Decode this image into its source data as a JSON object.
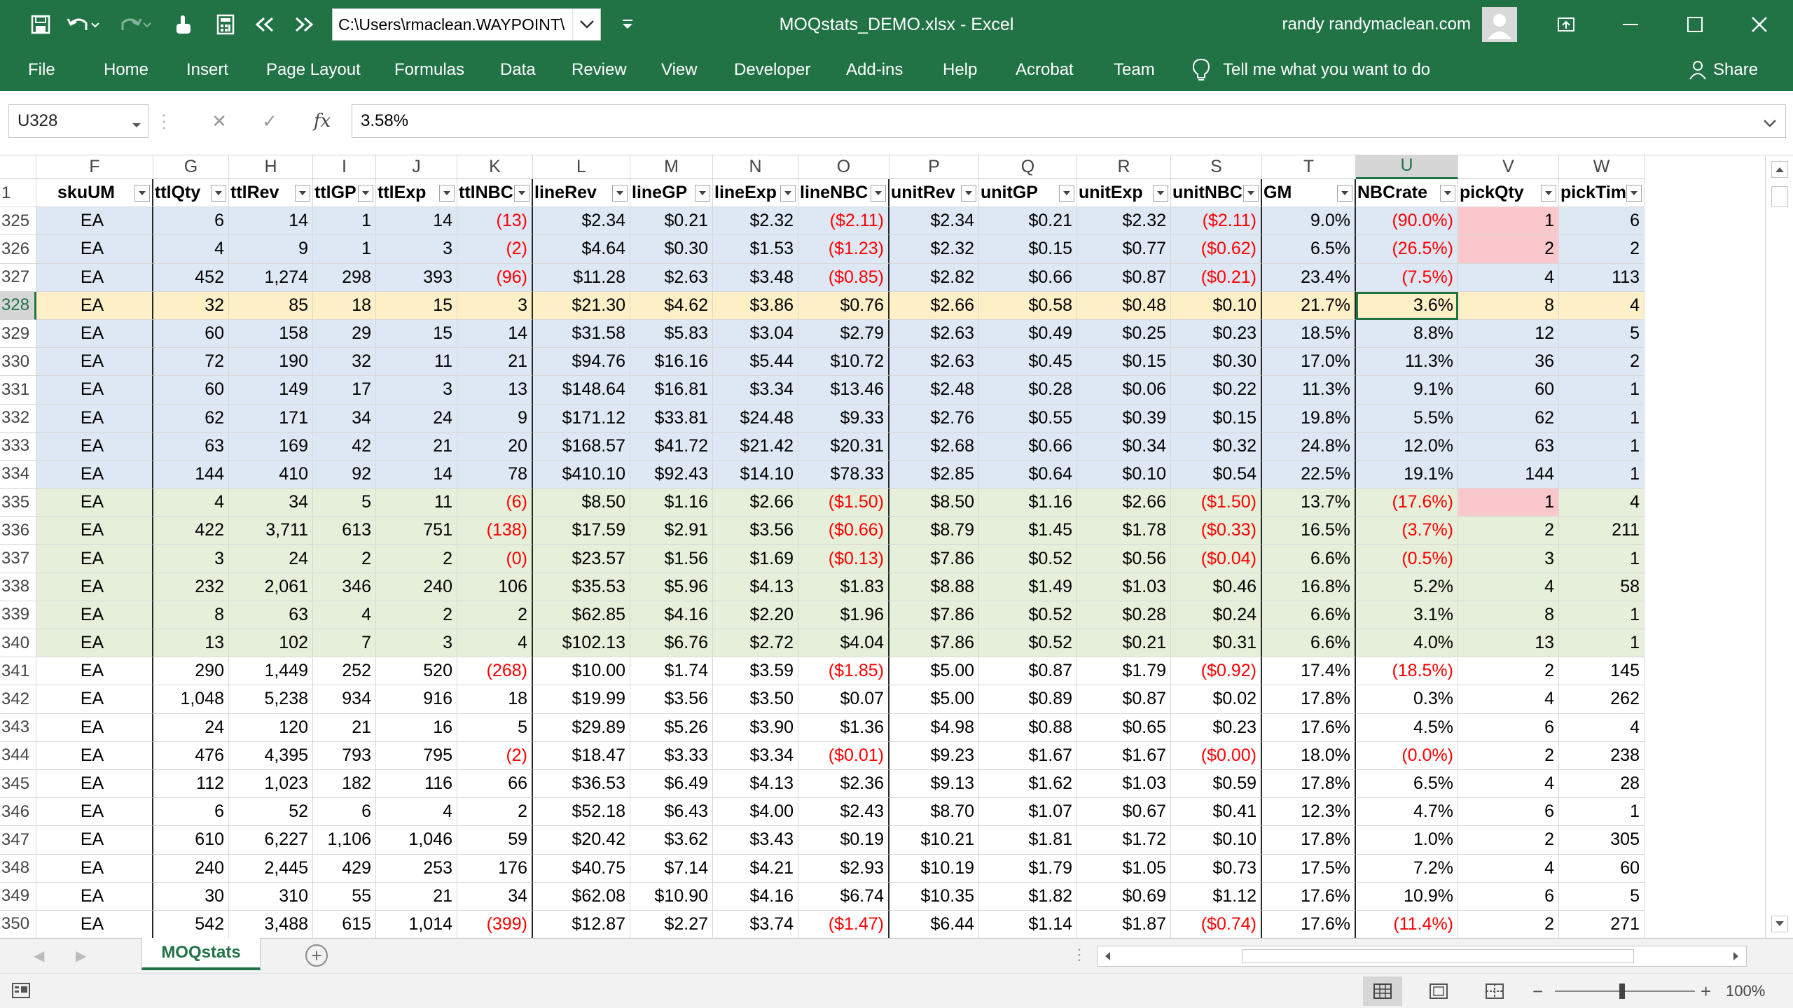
{
  "window": {
    "path": "C:\\Users\\rmaclean.WAYPOINT\\",
    "doc_title": "MOQstats_DEMO.xlsx  -  Excel",
    "user": "randy randymaclean.com"
  },
  "ribbon": {
    "tabs": [
      "File",
      "Home",
      "Insert",
      "Page Layout",
      "Formulas",
      "Data",
      "Review",
      "View",
      "Developer",
      "Add-ins",
      "Help",
      "Acrobat",
      "Team"
    ],
    "tell_me": "Tell me what you want to do",
    "share": "Share"
  },
  "formula_bar": {
    "name_box": "U328",
    "value": "3.58%"
  },
  "columns": [
    "F",
    "G",
    "H",
    "I",
    "J",
    "K",
    "L",
    "M",
    "N",
    "O",
    "P",
    "Q",
    "R",
    "S",
    "T",
    "U",
    "V",
    "W"
  ],
  "headers": [
    "skuUM",
    "ttlQty",
    "ttlRev",
    "ttlGP",
    "ttlExp",
    "ttlNBC",
    "lineRev",
    "lineGP",
    "lineExp",
    "lineNBC",
    "unitRev",
    "unitGP",
    "unitExp",
    "unitNBC",
    "GM",
    "NBCrate",
    "pickQty",
    "pickTimes"
  ],
  "rows": [
    {
      "n": "325",
      "c": [
        "EA",
        "6",
        "14",
        "1",
        "14",
        "(13)",
        "$2.34",
        "$0.21",
        "$2.32",
        "($2.11)",
        "$2.34",
        "$0.21",
        "$2.32",
        "($2.11)",
        "9.0%",
        "(90.0%)",
        "1",
        "6"
      ]
    },
    {
      "n": "326",
      "c": [
        "EA",
        "4",
        "9",
        "1",
        "3",
        "(2)",
        "$4.64",
        "$0.30",
        "$1.53",
        "($1.23)",
        "$2.32",
        "$0.15",
        "$0.77",
        "($0.62)",
        "6.5%",
        "(26.5%)",
        "2",
        "2"
      ]
    },
    {
      "n": "327",
      "c": [
        "EA",
        "452",
        "1,274",
        "298",
        "393",
        "(96)",
        "$11.28",
        "$2.63",
        "$3.48",
        "($0.85)",
        "$2.82",
        "$0.66",
        "$0.87",
        "($0.21)",
        "23.4%",
        "(7.5%)",
        "4",
        "113"
      ]
    },
    {
      "n": "328",
      "c": [
        "EA",
        "32",
        "85",
        "18",
        "15",
        "3",
        "$21.30",
        "$4.62",
        "$3.86",
        "$0.76",
        "$2.66",
        "$0.58",
        "$0.48",
        "$0.10",
        "21.7%",
        "3.6%",
        "8",
        "4"
      ]
    },
    {
      "n": "329",
      "c": [
        "EA",
        "60",
        "158",
        "29",
        "15",
        "14",
        "$31.58",
        "$5.83",
        "$3.04",
        "$2.79",
        "$2.63",
        "$0.49",
        "$0.25",
        "$0.23",
        "18.5%",
        "8.8%",
        "12",
        "5"
      ]
    },
    {
      "n": "330",
      "c": [
        "EA",
        "72",
        "190",
        "32",
        "11",
        "21",
        "$94.76",
        "$16.16",
        "$5.44",
        "$10.72",
        "$2.63",
        "$0.45",
        "$0.15",
        "$0.30",
        "17.0%",
        "11.3%",
        "36",
        "2"
      ]
    },
    {
      "n": "331",
      "c": [
        "EA",
        "60",
        "149",
        "17",
        "3",
        "13",
        "$148.64",
        "$16.81",
        "$3.34",
        "$13.46",
        "$2.48",
        "$0.28",
        "$0.06",
        "$0.22",
        "11.3%",
        "9.1%",
        "60",
        "1"
      ]
    },
    {
      "n": "332",
      "c": [
        "EA",
        "62",
        "171",
        "34",
        "24",
        "9",
        "$171.12",
        "$33.81",
        "$24.48",
        "$9.33",
        "$2.76",
        "$0.55",
        "$0.39",
        "$0.15",
        "19.8%",
        "5.5%",
        "62",
        "1"
      ]
    },
    {
      "n": "333",
      "c": [
        "EA",
        "63",
        "169",
        "42",
        "21",
        "20",
        "$168.57",
        "$41.72",
        "$21.42",
        "$20.31",
        "$2.68",
        "$0.66",
        "$0.34",
        "$0.32",
        "24.8%",
        "12.0%",
        "63",
        "1"
      ]
    },
    {
      "n": "334",
      "c": [
        "EA",
        "144",
        "410",
        "92",
        "14",
        "78",
        "$410.10",
        "$92.43",
        "$14.10",
        "$78.33",
        "$2.85",
        "$0.64",
        "$0.10",
        "$0.54",
        "22.5%",
        "19.1%",
        "144",
        "1"
      ]
    },
    {
      "n": "335",
      "c": [
        "EA",
        "4",
        "34",
        "5",
        "11",
        "(6)",
        "$8.50",
        "$1.16",
        "$2.66",
        "($1.50)",
        "$8.50",
        "$1.16",
        "$2.66",
        "($1.50)",
        "13.7%",
        "(17.6%)",
        "1",
        "4"
      ]
    },
    {
      "n": "336",
      "c": [
        "EA",
        "422",
        "3,711",
        "613",
        "751",
        "(138)",
        "$17.59",
        "$2.91",
        "$3.56",
        "($0.66)",
        "$8.79",
        "$1.45",
        "$1.78",
        "($0.33)",
        "16.5%",
        "(3.7%)",
        "2",
        "211"
      ]
    },
    {
      "n": "337",
      "c": [
        "EA",
        "3",
        "24",
        "2",
        "2",
        "(0)",
        "$23.57",
        "$1.56",
        "$1.69",
        "($0.13)",
        "$7.86",
        "$0.52",
        "$0.56",
        "($0.04)",
        "6.6%",
        "(0.5%)",
        "3",
        "1"
      ]
    },
    {
      "n": "338",
      "c": [
        "EA",
        "232",
        "2,061",
        "346",
        "240",
        "106",
        "$35.53",
        "$5.96",
        "$4.13",
        "$1.83",
        "$8.88",
        "$1.49",
        "$1.03",
        "$0.46",
        "16.8%",
        "5.2%",
        "4",
        "58"
      ]
    },
    {
      "n": "339",
      "c": [
        "EA",
        "8",
        "63",
        "4",
        "2",
        "2",
        "$62.85",
        "$4.16",
        "$2.20",
        "$1.96",
        "$7.86",
        "$0.52",
        "$0.28",
        "$0.24",
        "6.6%",
        "3.1%",
        "8",
        "1"
      ]
    },
    {
      "n": "340",
      "c": [
        "EA",
        "13",
        "102",
        "7",
        "3",
        "4",
        "$102.13",
        "$6.76",
        "$2.72",
        "$4.04",
        "$7.86",
        "$0.52",
        "$0.21",
        "$0.31",
        "6.6%",
        "4.0%",
        "13",
        "1"
      ]
    },
    {
      "n": "341",
      "c": [
        "EA",
        "290",
        "1,449",
        "252",
        "520",
        "(268)",
        "$10.00",
        "$1.74",
        "$3.59",
        "($1.85)",
        "$5.00",
        "$0.87",
        "$1.79",
        "($0.92)",
        "17.4%",
        "(18.5%)",
        "2",
        "145"
      ]
    },
    {
      "n": "342",
      "c": [
        "EA",
        "1,048",
        "5,238",
        "934",
        "916",
        "18",
        "$19.99",
        "$3.56",
        "$3.50",
        "$0.07",
        "$5.00",
        "$0.89",
        "$0.87",
        "$0.02",
        "17.8%",
        "0.3%",
        "4",
        "262"
      ]
    },
    {
      "n": "343",
      "c": [
        "EA",
        "24",
        "120",
        "21",
        "16",
        "5",
        "$29.89",
        "$5.26",
        "$3.90",
        "$1.36",
        "$4.98",
        "$0.88",
        "$0.65",
        "$0.23",
        "17.6%",
        "4.5%",
        "6",
        "4"
      ]
    },
    {
      "n": "344",
      "c": [
        "EA",
        "476",
        "4,395",
        "793",
        "795",
        "(2)",
        "$18.47",
        "$3.33",
        "$3.34",
        "($0.01)",
        "$9.23",
        "$1.67",
        "$1.67",
        "($0.00)",
        "18.0%",
        "(0.0%)",
        "2",
        "238"
      ]
    },
    {
      "n": "345",
      "c": [
        "EA",
        "112",
        "1,023",
        "182",
        "116",
        "66",
        "$36.53",
        "$6.49",
        "$4.13",
        "$2.36",
        "$9.13",
        "$1.62",
        "$1.03",
        "$0.59",
        "17.8%",
        "6.5%",
        "4",
        "28"
      ]
    },
    {
      "n": "346",
      "c": [
        "EA",
        "6",
        "52",
        "6",
        "4",
        "2",
        "$52.18",
        "$6.43",
        "$4.00",
        "$2.43",
        "$8.70",
        "$1.07",
        "$0.67",
        "$0.41",
        "12.3%",
        "4.7%",
        "6",
        "1"
      ]
    },
    {
      "n": "347",
      "c": [
        "EA",
        "610",
        "6,227",
        "1,106",
        "1,046",
        "59",
        "$20.42",
        "$3.62",
        "$3.43",
        "$0.19",
        "$10.21",
        "$1.81",
        "$1.72",
        "$0.10",
        "17.8%",
        "1.0%",
        "2",
        "305"
      ]
    },
    {
      "n": "348",
      "c": [
        "EA",
        "240",
        "2,445",
        "429",
        "253",
        "176",
        "$40.75",
        "$7.14",
        "$4.21",
        "$2.93",
        "$10.19",
        "$1.79",
        "$1.05",
        "$0.73",
        "17.5%",
        "7.2%",
        "4",
        "60"
      ]
    },
    {
      "n": "349",
      "c": [
        "EA",
        "30",
        "310",
        "55",
        "21",
        "34",
        "$62.08",
        "$10.90",
        "$4.16",
        "$6.74",
        "$10.35",
        "$1.82",
        "$0.69",
        "$1.12",
        "17.6%",
        "10.9%",
        "6",
        "5"
      ]
    },
    {
      "n": "350",
      "c": [
        "EA",
        "542",
        "3,488",
        "615",
        "1,014",
        "(399)",
        "$12.87",
        "$2.27",
        "$3.74",
        "($1.47)",
        "$6.44",
        "$1.14",
        "$1.87",
        "($0.74)",
        "17.6%",
        "(11.4%)",
        "2",
        "271"
      ]
    }
  ],
  "sheet_tab": "MOQstats",
  "zoom": "100%",
  "colors": {
    "excel_green": "#217346",
    "band_blue": "#dde8f4",
    "band_green": "#e6efd9",
    "highlight_row": "#fdefc6",
    "pink": "#f9c7cc",
    "negative": "#ff0000"
  }
}
